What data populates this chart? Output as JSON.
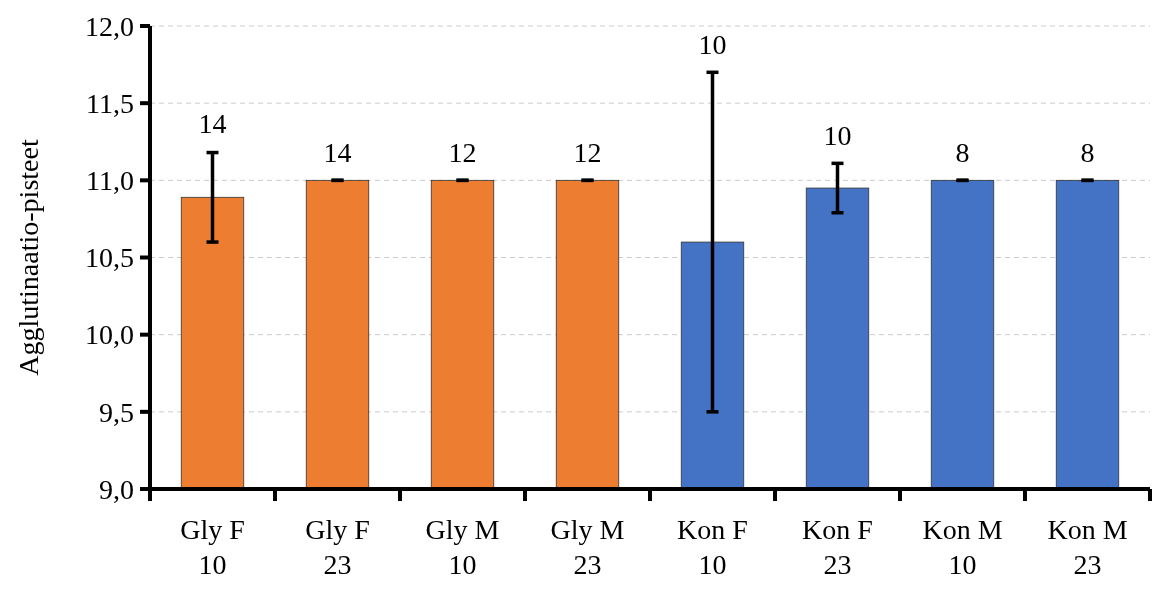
{
  "chart_data": {
    "type": "bar",
    "ylabel": "Agglutinaatio-pisteet",
    "categories": [
      "Gly F\n10",
      "Gly F\n23",
      "Gly M\n10",
      "Gly M\n23",
      "Kon F\n10",
      "Kon F\n23",
      "Kon M\n10",
      "Kon M\n23"
    ],
    "values": [
      10.89,
      11.0,
      11.0,
      11.0,
      10.6,
      10.95,
      11.0,
      11.0
    ],
    "colors": [
      "#ed7d31",
      "#ed7d31",
      "#ed7d31",
      "#ed7d31",
      "#4472c4",
      "#4472c4",
      "#4472c4",
      "#4472c4"
    ],
    "errors": [
      0.29,
      0,
      0,
      0,
      1.1,
      0.16,
      0,
      0
    ],
    "ylim": [
      9,
      12
    ],
    "yticks": [
      {
        "value": 9,
        "label": "9,0"
      },
      {
        "value": 9.5,
        "label": "9,5"
      },
      {
        "value": 10,
        "label": "10,0"
      },
      {
        "value": 10.5,
        "label": "10,5"
      },
      {
        "value": 11,
        "label": "11,0"
      },
      {
        "value": 11.5,
        "label": "11,5"
      },
      {
        "value": 12,
        "label": "12,0"
      }
    ],
    "grid": "y",
    "annotations": [
      {
        "text": "14",
        "x": "Gly F\n10",
        "y": 11.19
      },
      {
        "text": "14",
        "x": "Gly F\n23",
        "y": 11.0
      },
      {
        "text": "12",
        "x": "Gly M\n10",
        "y": 11.0
      },
      {
        "text": "12",
        "x": "Gly M\n23",
        "y": 11.0
      },
      {
        "text": "10",
        "x": "Kon F\n10",
        "y": 11.7
      },
      {
        "text": "10",
        "x": "Kon F\n23",
        "y": 11.11
      },
      {
        "text": "8",
        "x": "Kon M\n10",
        "y": 11.0
      },
      {
        "text": "8",
        "x": "Kon M\n23",
        "y": 11.0
      }
    ]
  }
}
